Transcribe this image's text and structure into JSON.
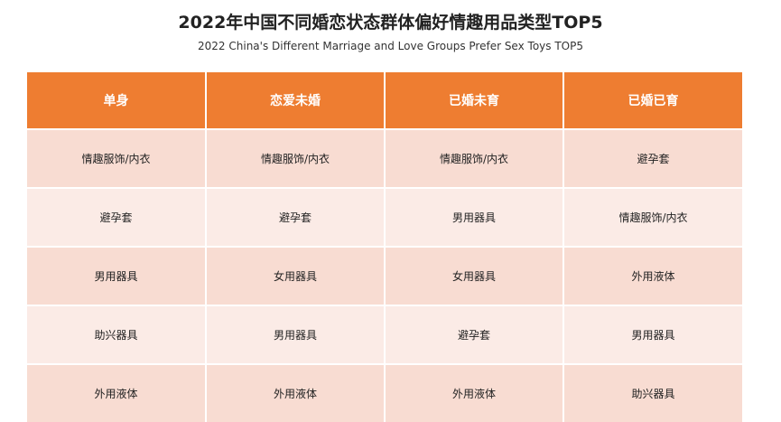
{
  "header": {
    "title": "2022年中国不同婚恋状态群体偏好情趣用品类型TOP5",
    "subtitle": "2022 China's Different Marriage and Love Groups Prefer Sex Toys TOP5"
  },
  "table": {
    "columns": [
      "单身",
      "恋爱未婚",
      "已婚未育",
      "已婚已育"
    ],
    "rows": [
      [
        "情趣服饰/内衣",
        "情趣服饰/内衣",
        "情趣服饰/内衣",
        "避孕套"
      ],
      [
        "避孕套",
        "避孕套",
        "男用器具",
        "情趣服饰/内衣"
      ],
      [
        "男用器具",
        "女用器具",
        "女用器具",
        "外用液体"
      ],
      [
        "助兴器具",
        "男用器具",
        "避孕套",
        "男用器具"
      ],
      [
        "外用液体",
        "外用液体",
        "外用液体",
        "助兴器具"
      ]
    ]
  }
}
